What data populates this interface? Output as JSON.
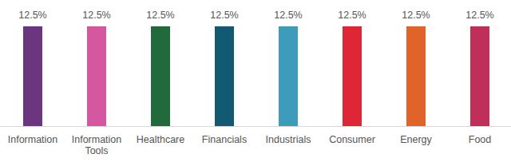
{
  "chart_data": {
    "type": "bar",
    "categories": [
      "Information",
      "Information Tools",
      "Healthcare",
      "Financials",
      "Industrials",
      "Consumer",
      "Energy",
      "Food"
    ],
    "values": [
      12.5,
      12.5,
      12.5,
      12.5,
      12.5,
      12.5,
      12.5,
      12.5
    ],
    "value_labels": [
      "12.5%",
      "12.5%",
      "12.5%",
      "12.5%",
      "12.5%",
      "12.5%",
      "12.5%",
      "12.5%"
    ],
    "colors": [
      "#6b357f",
      "#d457a0",
      "#206a3c",
      "#125a72",
      "#3d9bbb",
      "#df2636",
      "#e0642a",
      "#c02f59"
    ],
    "ylim": [
      0,
      12.5
    ],
    "data_labels": true,
    "tick_labels": "x",
    "grid": false
  }
}
